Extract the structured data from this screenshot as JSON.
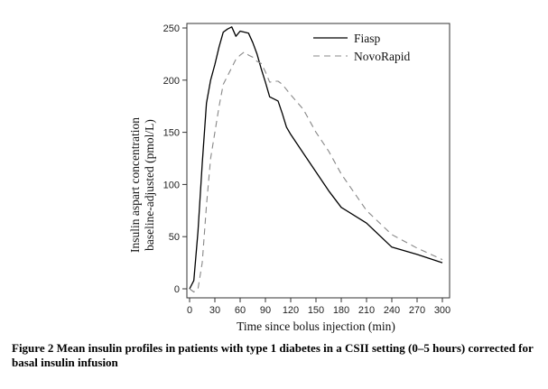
{
  "chart_data": {
    "type": "line",
    "title": "",
    "xlabel": "Time since bolus injection (min)",
    "ylabel_lines": [
      "Insulin aspart concentration",
      "baseline-adjusted (pmol/L)"
    ],
    "xlim": [
      0,
      300
    ],
    "ylim": [
      0,
      250
    ],
    "xticks": [
      0,
      30,
      60,
      90,
      120,
      150,
      180,
      210,
      240,
      270,
      300
    ],
    "yticks": [
      0,
      50,
      100,
      150,
      200,
      250
    ],
    "grid": false,
    "legend_position": "top-right",
    "series": [
      {
        "name": "Fiasp",
        "style": "solid",
        "color": "#000000",
        "x": [
          0,
          5,
          10,
          15,
          20,
          25,
          30,
          35,
          40,
          45,
          50,
          55,
          60,
          65,
          70,
          75,
          80,
          85,
          90,
          95,
          100,
          105,
          110,
          115,
          120,
          135,
          150,
          165,
          180,
          210,
          240,
          270,
          300
        ],
        "y": [
          0,
          8,
          55,
          120,
          178,
          200,
          215,
          232,
          246,
          249,
          251,
          242,
          247,
          246,
          245,
          236,
          225,
          211,
          198,
          184,
          182,
          180,
          168,
          155,
          148,
          130,
          112,
          94,
          78,
          63,
          40,
          33,
          25
        ]
      },
      {
        "name": "NovoRapid",
        "style": "dashed",
        "color": "#888888",
        "x": [
          0,
          5,
          10,
          15,
          20,
          25,
          30,
          35,
          40,
          45,
          50,
          55,
          60,
          65,
          70,
          75,
          80,
          85,
          90,
          95,
          100,
          105,
          110,
          115,
          120,
          135,
          150,
          165,
          180,
          210,
          240,
          270,
          300
        ],
        "y": [
          0,
          -3,
          0,
          25,
          80,
          125,
          150,
          175,
          196,
          204,
          212,
          220,
          224,
          227,
          224,
          222,
          218,
          216,
          208,
          198,
          199,
          199,
          196,
          191,
          186,
          172,
          150,
          132,
          110,
          75,
          52,
          39,
          28
        ]
      }
    ]
  },
  "caption": "Figure 2 Mean insulin profiles in patients with type 1 diabetes in a CSII setting (0–5 hours) corrected for basal insulin infusion"
}
